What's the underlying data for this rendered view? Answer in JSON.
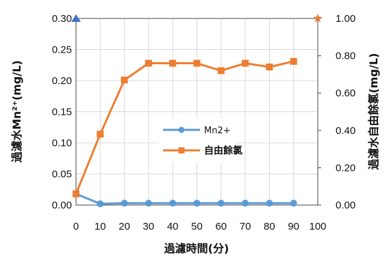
{
  "chart_data": {
    "type": "line",
    "xlabel": "過濾時間(分)",
    "ylabel_left": "過濾水Mn²⁺(mg/L)",
    "ylabel_right": "過濾水自由餘氯(mg/L)",
    "xlim": [
      0,
      100
    ],
    "ylim_left": [
      0,
      0.3
    ],
    "ylim_right": [
      0,
      1.0
    ],
    "x_ticks": [
      "0",
      "10",
      "20",
      "30",
      "40",
      "50",
      "60",
      "70",
      "80",
      "90",
      "100"
    ],
    "y_left_ticks": [
      "0.00",
      "0.05",
      "0.10",
      "0.15",
      "0.20",
      "0.25",
      "0.30"
    ],
    "y_right_ticks": [
      "0.00",
      "0.20",
      "0.40",
      "0.60",
      "0.80",
      "1.00"
    ],
    "grid": true,
    "legend_position": "center",
    "series": [
      {
        "name": "Mn2+",
        "axis": "left",
        "color": "#5b9bd5",
        "marker": "circle",
        "x": [
          0,
          10,
          20,
          30,
          40,
          50,
          60,
          70,
          80,
          90
        ],
        "values": [
          0.018,
          0.002,
          0.003,
          0.003,
          0.003,
          0.003,
          0.003,
          0.003,
          0.003,
          0.003
        ]
      },
      {
        "name": "自由餘氯",
        "axis": "right",
        "color": "#ed7d31",
        "marker": "square",
        "x": [
          0,
          10,
          20,
          30,
          40,
          50,
          60,
          70,
          80,
          90
        ],
        "values": [
          0.06,
          0.38,
          0.67,
          0.76,
          0.76,
          0.76,
          0.72,
          0.76,
          0.74,
          0.77
        ]
      }
    ]
  }
}
